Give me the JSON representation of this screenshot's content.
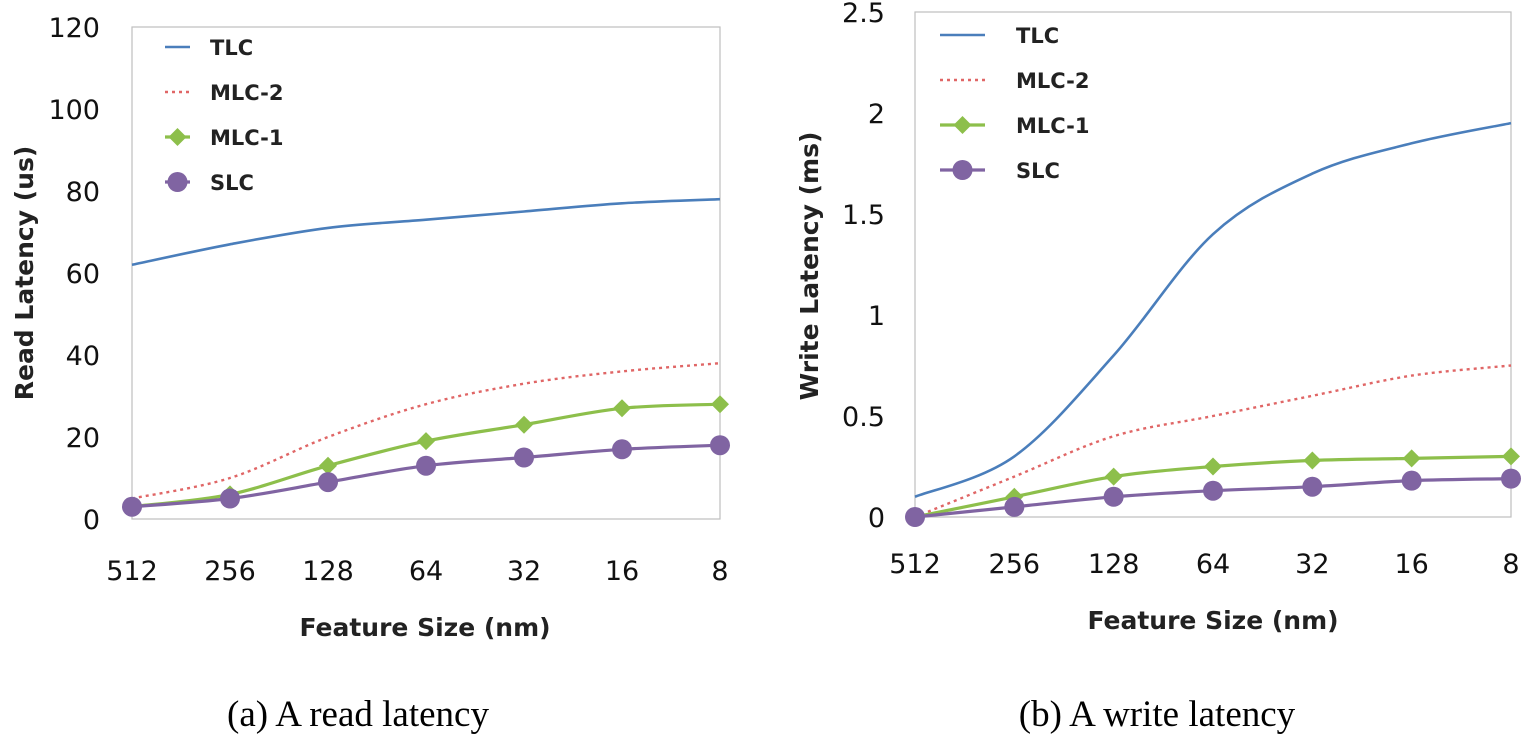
{
  "chart_data": [
    {
      "type": "line",
      "ylabel": "Read Latency (us)",
      "xlabel": "Feature Size (nm)",
      "categories": [
        "512",
        "256",
        "128",
        "64",
        "32",
        "16",
        "8"
      ],
      "ylim": [
        0,
        120
      ],
      "yticks": [
        "0",
        "20",
        "40",
        "60",
        "80",
        "100",
        "120"
      ],
      "legend_position": "top-left",
      "grid": false,
      "series": [
        {
          "name": "TLC",
          "values": [
            62,
            67,
            71,
            73,
            75,
            77,
            78
          ],
          "color": "#4a7ebb",
          "style": "solid",
          "marker": "none"
        },
        {
          "name": "MLC-2",
          "values": [
            5,
            10,
            20,
            28,
            33,
            36,
            38
          ],
          "color": "#e06666",
          "style": "dotted",
          "marker": "none"
        },
        {
          "name": "MLC-1",
          "values": [
            3,
            6,
            13,
            19,
            23,
            27,
            28
          ],
          "color": "#8dbf4b",
          "style": "solid",
          "marker": "diamond"
        },
        {
          "name": "SLC",
          "values": [
            3,
            5,
            9,
            13,
            15,
            17,
            18
          ],
          "color": "#8064a2",
          "style": "solid",
          "marker": "circle"
        }
      ],
      "caption": "(a)  A read latency"
    },
    {
      "type": "line",
      "ylabel": "Write Latency (ms)",
      "xlabel": "Feature Size (nm)",
      "categories": [
        "512",
        "256",
        "128",
        "64",
        "32",
        "16",
        "8"
      ],
      "ylim": [
        0,
        2.5
      ],
      "yticks": [
        "0",
        "0.5",
        "1",
        "1.5",
        "2",
        "2.5"
      ],
      "legend_position": "top-left",
      "grid": false,
      "series": [
        {
          "name": "TLC",
          "values": [
            0.1,
            0.3,
            0.8,
            1.4,
            1.7,
            1.85,
            1.95
          ],
          "color": "#4a7ebb",
          "style": "solid",
          "marker": "none"
        },
        {
          "name": "MLC-2",
          "values": [
            0,
            0.2,
            0.4,
            0.5,
            0.6,
            0.7,
            0.75
          ],
          "color": "#e06666",
          "style": "dotted",
          "marker": "none"
        },
        {
          "name": "MLC-1",
          "values": [
            0,
            0.1,
            0.2,
            0.25,
            0.28,
            0.29,
            0.3
          ],
          "color": "#8dbf4b",
          "style": "solid",
          "marker": "diamond"
        },
        {
          "name": "SLC",
          "values": [
            0,
            0.05,
            0.1,
            0.13,
            0.15,
            0.18,
            0.19
          ],
          "color": "#8064a2",
          "style": "solid",
          "marker": "circle"
        }
      ],
      "caption": "(b)  A write latency"
    }
  ]
}
